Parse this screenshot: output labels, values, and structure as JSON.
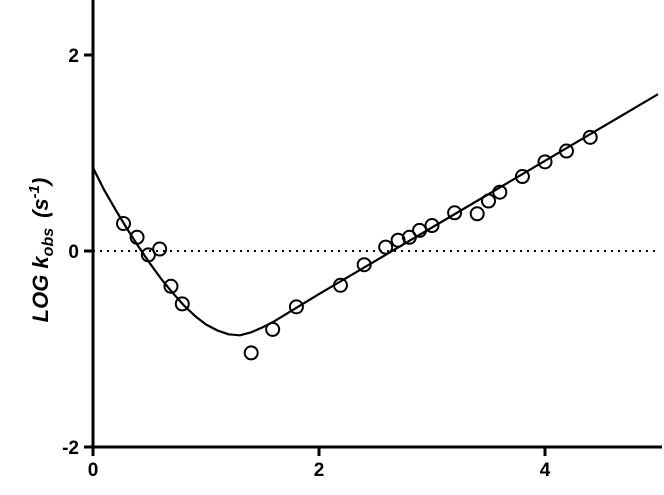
{
  "chart_data": {
    "type": "scatter",
    "ylabel": [
      "LOG k",
      "obs",
      "(s",
      "-1",
      ")"
    ],
    "xlim": [
      0,
      5
    ],
    "ylim": [
      -2,
      2.5
    ],
    "xticks": [
      0,
      2,
      4
    ],
    "yticks": [
      -2,
      0,
      2
    ],
    "hline": 0,
    "series": [
      {
        "name": "data",
        "kind": "points",
        "color": "#000000",
        "x": [
          0.27,
          0.39,
          0.49,
          0.59,
          0.69,
          0.79,
          1.4,
          1.59,
          1.8,
          2.19,
          2.4,
          2.59,
          2.7,
          2.8,
          2.89,
          3.0,
          3.2,
          3.4,
          3.5,
          3.6,
          3.8,
          4.0,
          4.19,
          4.4
        ],
        "values": [
          0.28,
          0.14,
          -0.04,
          0.02,
          -0.36,
          -0.54,
          -1.04,
          -0.8,
          -0.57,
          -0.35,
          -0.14,
          0.04,
          0.11,
          0.14,
          0.21,
          0.26,
          0.39,
          0.38,
          0.51,
          0.6,
          0.76,
          0.91,
          1.02,
          1.16
        ]
      },
      {
        "name": "fit",
        "kind": "line",
        "color": "#000000",
        "x": [
          0,
          0.1,
          0.2,
          0.3,
          0.4,
          0.5,
          0.6,
          0.7,
          0.8,
          0.9,
          1.0,
          1.1,
          1.2,
          1.3,
          1.4,
          1.5,
          1.6,
          1.8,
          2.0,
          3.0,
          4.0,
          5.0
        ],
        "values": [
          0.85,
          0.62,
          0.42,
          0.23,
          0.05,
          -0.12,
          -0.28,
          -0.42,
          -0.55,
          -0.66,
          -0.75,
          -0.81,
          -0.85,
          -0.86,
          -0.83,
          -0.78,
          -0.72,
          -0.58,
          -0.44,
          0.24,
          0.92,
          1.6
        ]
      }
    ]
  }
}
